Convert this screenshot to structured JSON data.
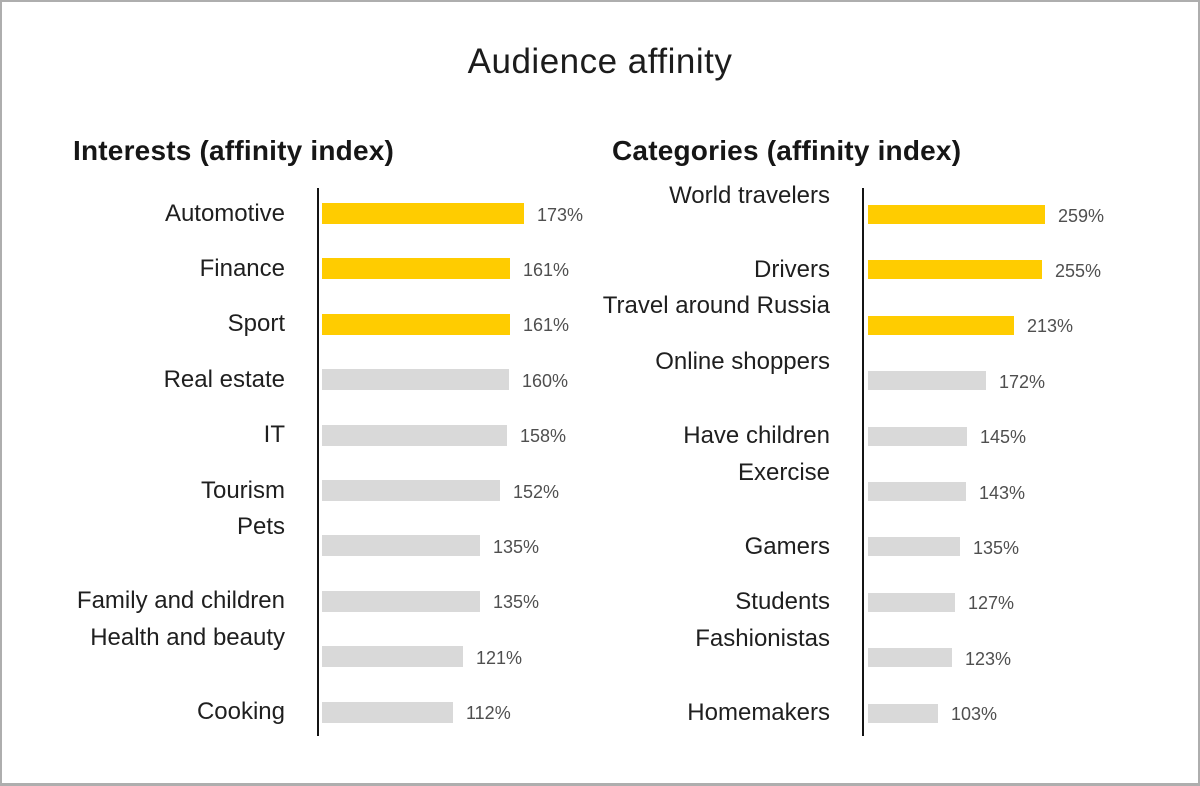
{
  "window": {
    "title": "Audience affinity"
  },
  "colors": {
    "highlight": "#FFCC00",
    "muted": "#D9D9D9",
    "axis": "#141414",
    "heading_text": "#161616",
    "label_text": "#1F1F1F",
    "value_text": "#4F4F4F",
    "frame": "#AEAEAE"
  },
  "chart_data": [
    {
      "type": "bar",
      "orientation": "horizontal",
      "title": "Interests (affinity index)",
      "unit": "%",
      "legend": "none",
      "grid": "off",
      "categories": [
        "Automotive",
        "Finance",
        "Sport",
        "Real estate",
        "IT",
        "Tourism",
        "Pets",
        "Family and children",
        "Health and beauty",
        "Cooking"
      ],
      "values": [
        173,
        161,
        161,
        160,
        158,
        152,
        135,
        135,
        121,
        112
      ],
      "value_labels": [
        "173%",
        "161%",
        "161%",
        "160%",
        "158%",
        "152%",
        "135%",
        "135%",
        "121%",
        "112%"
      ],
      "highlighted": [
        true,
        true,
        true,
        false,
        false,
        false,
        false,
        false,
        false,
        false
      ],
      "raised_label_indices": [
        6,
        8
      ]
    },
    {
      "type": "bar",
      "orientation": "horizontal",
      "title": "Categories (affinity index)",
      "unit": "%",
      "legend": "none",
      "grid": "off",
      "categories": [
        "World travelers",
        "Drivers",
        "Travel around Russia",
        "Online shoppers",
        "Have children",
        "Exercise",
        "Gamers",
        "Students",
        "Fashionistas",
        "Homemakers"
      ],
      "values": [
        259,
        255,
        213,
        172,
        145,
        143,
        135,
        127,
        123,
        103
      ],
      "value_labels": [
        "259%",
        "255%",
        "213%",
        "172%",
        "145%",
        "143%",
        "135%",
        "127%",
        "123%",
        "103%"
      ],
      "highlighted": [
        true,
        true,
        true,
        false,
        false,
        false,
        false,
        false,
        false,
        false
      ],
      "raised_label_indices": [
        0,
        2,
        3,
        5,
        8
      ]
    }
  ]
}
